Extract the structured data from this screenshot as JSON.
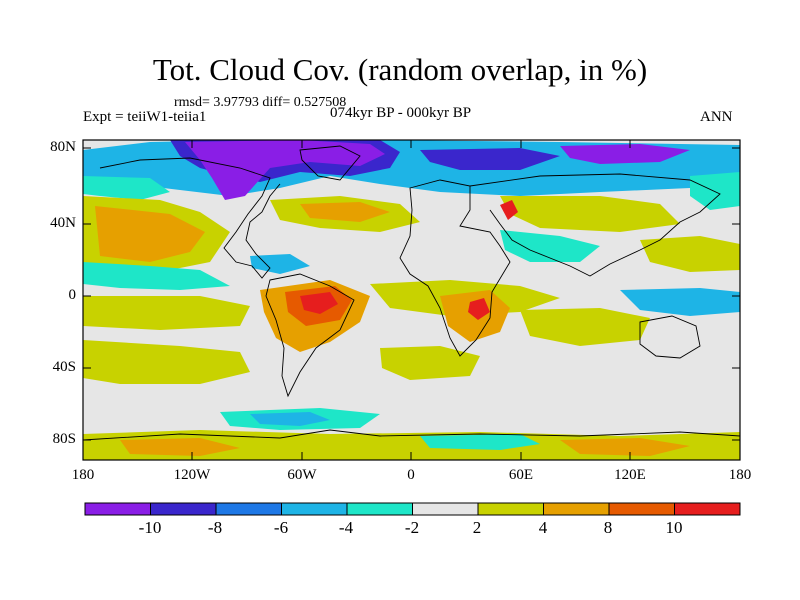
{
  "title": "Tot. Cloud Cov. (random overlap, in %)",
  "stats": "rmsd= 3.97793  diff= 0.527508",
  "experiment": "Expt = teiiW1-teiia1",
  "period": "074kyr BP - 000kyr BP",
  "season": "ANN",
  "lat_ticks": [
    "80N",
    "40N",
    "0",
    "40S",
    "80S"
  ],
  "lon_ticks": [
    "180",
    "120W",
    "60W",
    "0",
    "60E",
    "120E",
    "180"
  ],
  "colorbar": {
    "labels": [
      "-10",
      "-8",
      "-6",
      "-4",
      "-2",
      "2",
      "4",
      "8",
      "10"
    ],
    "colors": [
      "#8a1ee6",
      "#3a26cc",
      "#1e78e6",
      "#1eb4e6",
      "#1ee6c8",
      "#e6e6e6",
      "#c8d200",
      "#e6a000",
      "#e65a00",
      "#e61e1e"
    ]
  },
  "colors": {
    "land_outline": "#000000",
    "background": "#e6e6e6"
  }
}
